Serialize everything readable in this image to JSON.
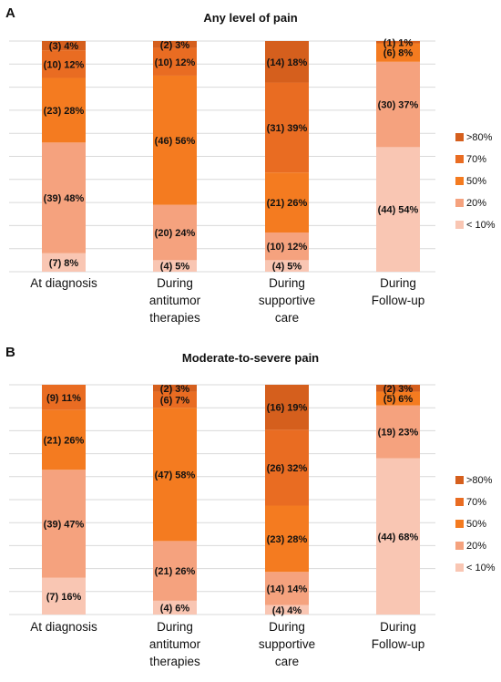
{
  "chart_data": [
    {
      "type": "bar",
      "stacked": true,
      "panel": "A",
      "title": "Any level of pain",
      "categories": [
        [
          "At diagnosis"
        ],
        [
          "During",
          "antitumor",
          "therapies"
        ],
        [
          "During",
          "supportive",
          "care"
        ],
        [
          "During",
          "Follow-up"
        ]
      ],
      "series": [
        {
          "name": "< 10%",
          "color": "#F9C6B3",
          "values": [
            8,
            5,
            5,
            54
          ],
          "labels": [
            "(7) 8%",
            "(4) 5%",
            "(4) 5%",
            "(44) 54%"
          ]
        },
        {
          "name": "20%",
          "color": "#F5A27E",
          "values": [
            48,
            24,
            12,
            37
          ],
          "labels": [
            "(39) 48%",
            "(20) 24%",
            "(10) 12%",
            "(30) 37%"
          ]
        },
        {
          "name": "50%",
          "color": "#F47B20",
          "values": [
            28,
            56,
            26,
            8
          ],
          "labels": [
            "(23) 28%",
            "(46) 56%",
            "(21) 26%",
            "(6) 8%"
          ]
        },
        {
          "name": "70%",
          "color": "#E96C22",
          "values": [
            12,
            12,
            39,
            0
          ],
          "labels": [
            "(10) 12%",
            "(10) 12%",
            "(31) 39%",
            ""
          ]
        },
        {
          "name": ">80%",
          "color": "#D55F1D",
          "values": [
            4,
            3,
            18,
            1
          ],
          "labels": [
            "(3) 4%",
            "(2) 3%",
            "(14) 18%",
            "(1) 1%"
          ]
        }
      ],
      "ylim": [
        0,
        100
      ],
      "grid": true,
      "legend": "right"
    },
    {
      "type": "bar",
      "stacked": true,
      "panel": "B",
      "title": "Moderate-to-severe pain",
      "categories": [
        [
          "At diagnosis"
        ],
        [
          "During",
          "antitumor",
          "therapies"
        ],
        [
          "During",
          "supportive",
          "care"
        ],
        [
          "During",
          "Follow-up"
        ]
      ],
      "series": [
        {
          "name": "< 10%",
          "color": "#F9C6B3",
          "values": [
            16,
            6,
            4,
            68
          ],
          "labels": [
            "(7) 16%",
            "(4) 6%",
            "(4) 4%",
            "(44) 68%"
          ]
        },
        {
          "name": "20%",
          "color": "#F5A27E",
          "values": [
            47,
            26,
            14,
            23
          ],
          "labels": [
            "(39) 47%",
            "(21) 26%",
            "(14) 14%",
            "(19) 23%"
          ]
        },
        {
          "name": "50%",
          "color": "#F47B20",
          "values": [
            26,
            58,
            28,
            6
          ],
          "labels": [
            "(21) 26%",
            "(47) 58%",
            "(23) 28%",
            "(5) 6%"
          ]
        },
        {
          "name": "70%",
          "color": "#E96C22",
          "values": [
            11,
            7,
            32,
            0
          ],
          "labels": [
            "(9) 11%",
            "(6) 7%",
            "(26) 32%",
            ""
          ]
        },
        {
          "name": ">80%",
          "color": "#D55F1D",
          "values": [
            0,
            3,
            19,
            3
          ],
          "labels": [
            "",
            "(2) 3%",
            "(16) 19%",
            "(2) 3%"
          ]
        }
      ],
      "ylim": [
        0,
        100
      ],
      "grid": true,
      "legend": "right"
    }
  ]
}
